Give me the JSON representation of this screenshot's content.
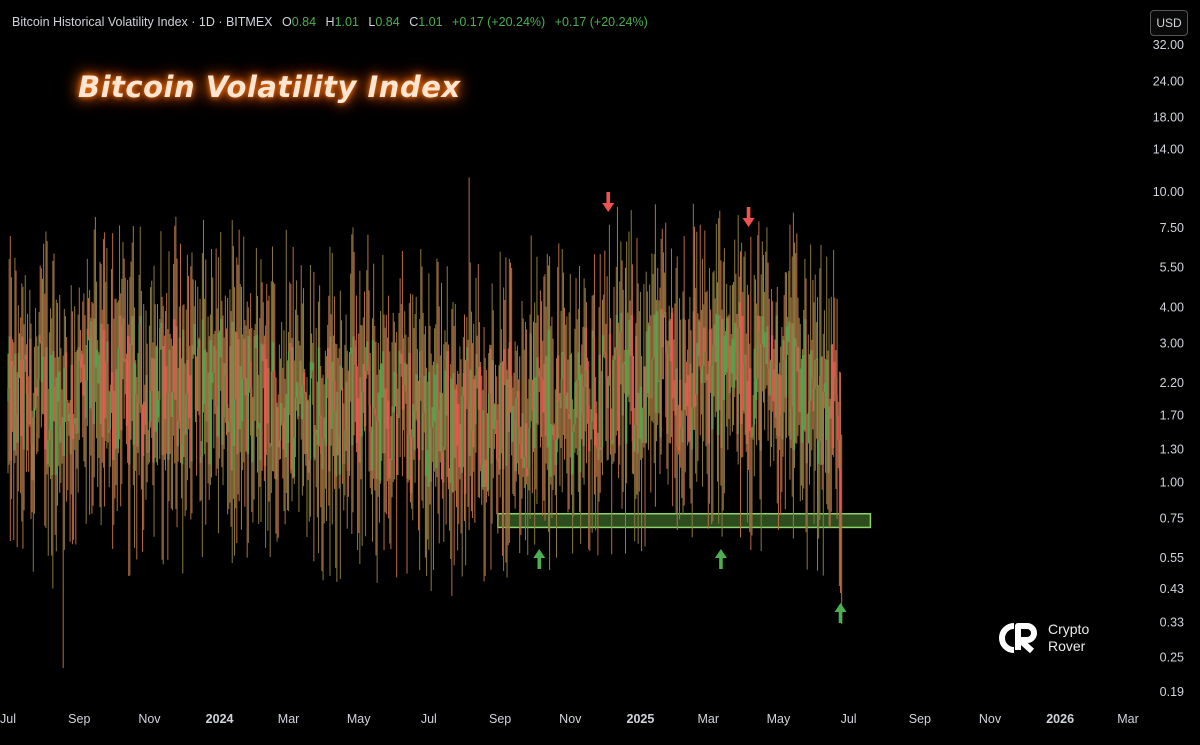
{
  "header": {
    "instrument": "Bitcoin Historical Volatility Index · 1D · BITMEX",
    "open_label": "O",
    "open": "0.84",
    "high_label": "H",
    "high": "1.01",
    "low_label": "L",
    "low": "0.84",
    "close_label": "C",
    "close": "1.01",
    "change": "+0.17 (+20.24%)",
    "change2": "+0.17 (+20.24%)",
    "currency": "USD"
  },
  "brand": {
    "line1": "Crypto",
    "line2": "Rover"
  },
  "colors": {
    "up": "#4caf50",
    "down": "#ef5350",
    "candle": "#b86c45",
    "zone": "#2e4d1f",
    "zone_border": "#8dd36a",
    "title_glow": "#ff6a00"
  },
  "chart_data": {
    "type": "candlestick",
    "title": "Bitcoin Volatility Index",
    "scale": "log",
    "ylim": [
      0.19,
      32.0
    ],
    "y_ticks": [
      "32.00",
      "24.00",
      "18.00",
      "14.00",
      "10.00",
      "7.50",
      "5.50",
      "4.00",
      "3.00",
      "2.20",
      "1.70",
      "1.30",
      "1.00",
      "0.75",
      "0.55",
      "0.43",
      "0.33",
      "0.25",
      "0.19"
    ],
    "x_ticks": [
      "Jul",
      "Sep",
      "Nov",
      "2024",
      "Mar",
      "May",
      "Jul",
      "Sep",
      "Nov",
      "2025",
      "Mar",
      "May",
      "Jul",
      "Sep",
      "Nov",
      "2026",
      "Mar"
    ],
    "x_start": "2023-07-01",
    "x_end": "2026-03-01",
    "data_end": "2025-06-25",
    "last_close": 1.01,
    "spikes": [
      {
        "date": "2023-08-03",
        "high": 7.3
      },
      {
        "date": "2023-08-18",
        "low": 0.23
      },
      {
        "date": "2023-09-30",
        "high": 7.2
      },
      {
        "date": "2024-02-28",
        "high": 7.4
      },
      {
        "date": "2024-07-05",
        "low": 0.5
      },
      {
        "date": "2024-08-05",
        "high": 11.2
      },
      {
        "date": "2024-12-05",
        "high": 7.7
      },
      {
        "date": "2025-03-10",
        "low": 0.72
      },
      {
        "date": "2025-04-07",
        "high": 7.0
      },
      {
        "date": "2025-06-23",
        "low": 0.44
      }
    ],
    "support_zone": {
      "low": 0.7,
      "high": 0.78,
      "from": "2024-08-30",
      "to": "2025-07-20"
    },
    "markers": [
      {
        "type": "down",
        "date": "2024-12-04",
        "color": "#ef5350"
      },
      {
        "type": "down",
        "date": "2025-04-05",
        "color": "#ef5350"
      },
      {
        "type": "up",
        "date": "2024-10-05",
        "color": "#4caf50"
      },
      {
        "type": "up",
        "date": "2025-03-12",
        "color": "#4caf50"
      },
      {
        "type": "up",
        "date": "2025-06-24",
        "color": "#4caf50"
      }
    ]
  }
}
